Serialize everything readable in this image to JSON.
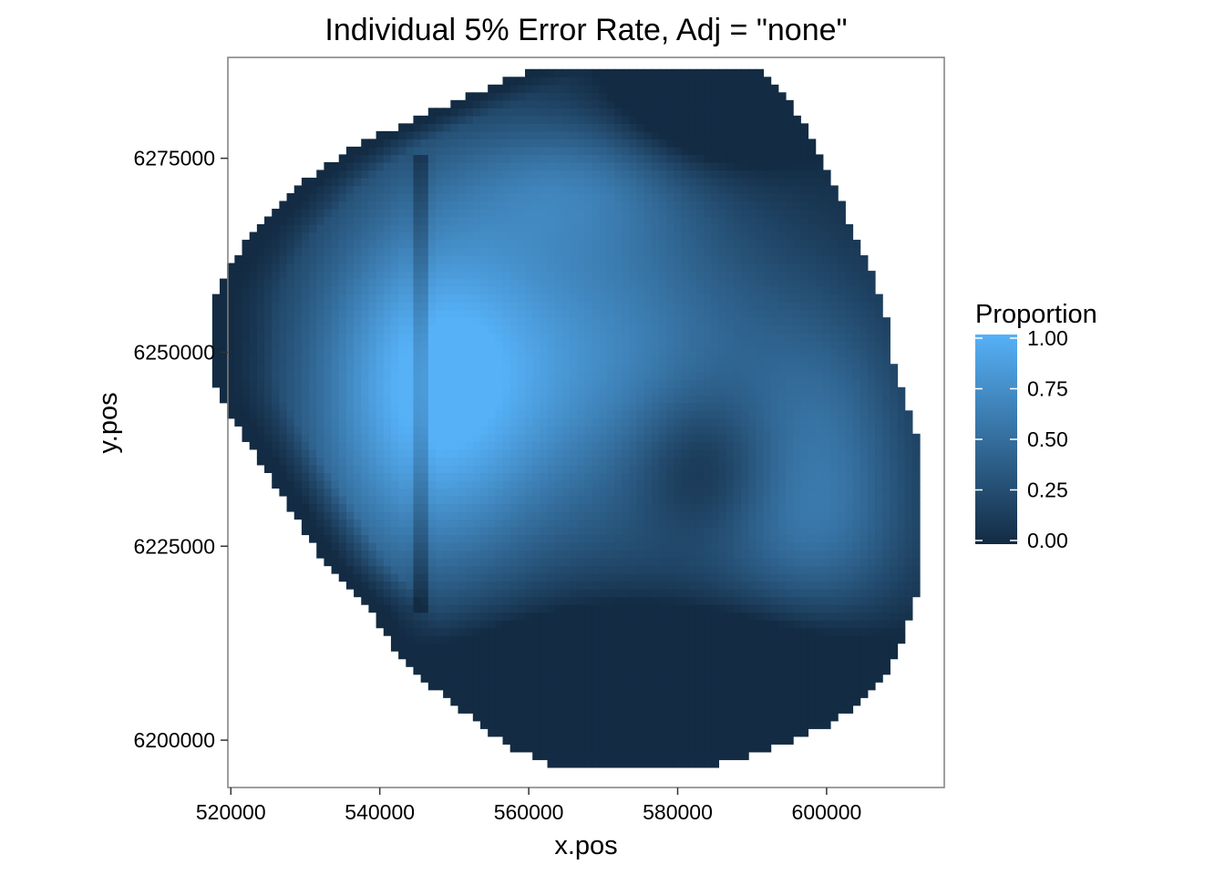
{
  "chart_data": {
    "type": "heatmap",
    "title": "Individual 5% Error Rate, Adj = \"none\"",
    "xlabel": "x.pos",
    "ylabel": "y.pos",
    "xlim": [
      519600,
      615800
    ],
    "ylim": [
      6193900,
      6288000
    ],
    "x_ticks": [
      520000,
      540000,
      560000,
      580000,
      600000
    ],
    "x_tick_labels": [
      "520000",
      "540000",
      "560000",
      "580000",
      "600000"
    ],
    "y_ticks": [
      6200000,
      6225000,
      6250000,
      6275000
    ],
    "y_tick_labels": [
      "6200000",
      "6225000",
      "6250000",
      "6275000"
    ],
    "grid": false,
    "legend": {
      "title": "Proportion",
      "position": "right",
      "breaks": [
        1.0,
        0.75,
        0.5,
        0.25,
        0.0
      ],
      "break_labels": [
        "1.00",
        "0.75",
        "0.50",
        "0.25",
        "0.00"
      ],
      "low_color": "#132B43",
      "high_color": "#56B1F7"
    },
    "cell_size": 1000,
    "region_rows": [
      {
        "y": 6286000,
        "x_min": 560000,
        "x_max": 591000
      },
      {
        "y": 6283000,
        "x_min": 552000,
        "x_max": 594000
      },
      {
        "y": 6280000,
        "x_min": 545000,
        "x_max": 596000
      },
      {
        "y": 6277000,
        "x_min": 538000,
        "x_max": 598000
      },
      {
        "y": 6274000,
        "x_min": 533000,
        "x_max": 599000
      },
      {
        "y": 6271000,
        "x_min": 529000,
        "x_max": 601000
      },
      {
        "y": 6268000,
        "x_min": 526000,
        "x_max": 602000
      },
      {
        "y": 6265000,
        "x_min": 523000,
        "x_max": 603000
      },
      {
        "y": 6262000,
        "x_min": 521000,
        "x_max": 605000
      },
      {
        "y": 6259000,
        "x_min": 519000,
        "x_max": 606000
      },
      {
        "y": 6256000,
        "x_min": 518000,
        "x_max": 607000
      },
      {
        "y": 6253000,
        "x_min": 518000,
        "x_max": 608000
      },
      {
        "y": 6250000,
        "x_min": 518000,
        "x_max": 608000
      },
      {
        "y": 6247000,
        "x_min": 518000,
        "x_max": 609000
      },
      {
        "y": 6244000,
        "x_min": 519000,
        "x_max": 610000
      },
      {
        "y": 6241000,
        "x_min": 521000,
        "x_max": 611000
      },
      {
        "y": 6238000,
        "x_min": 523000,
        "x_max": 612000
      },
      {
        "y": 6235000,
        "x_min": 525000,
        "x_max": 612000
      },
      {
        "y": 6232000,
        "x_min": 527000,
        "x_max": 612000
      },
      {
        "y": 6229000,
        "x_min": 529000,
        "x_max": 612000
      },
      {
        "y": 6226000,
        "x_min": 531000,
        "x_max": 612000
      },
      {
        "y": 6223000,
        "x_min": 533000,
        "x_max": 612000
      },
      {
        "y": 6220000,
        "x_min": 536000,
        "x_max": 612000
      },
      {
        "y": 6217000,
        "x_min": 539000,
        "x_max": 611000
      },
      {
        "y": 6214000,
        "x_min": 541000,
        "x_max": 610000
      },
      {
        "y": 6211000,
        "x_min": 543000,
        "x_max": 609000
      },
      {
        "y": 6208000,
        "x_min": 546000,
        "x_max": 607000
      },
      {
        "y": 6205000,
        "x_min": 550000,
        "x_max": 604000
      },
      {
        "y": 6202000,
        "x_min": 554000,
        "x_max": 600000
      },
      {
        "y": 6199000,
        "x_min": 558000,
        "x_max": 592000
      },
      {
        "y": 6197000,
        "x_min": 563000,
        "x_max": 585000
      }
    ]
  }
}
